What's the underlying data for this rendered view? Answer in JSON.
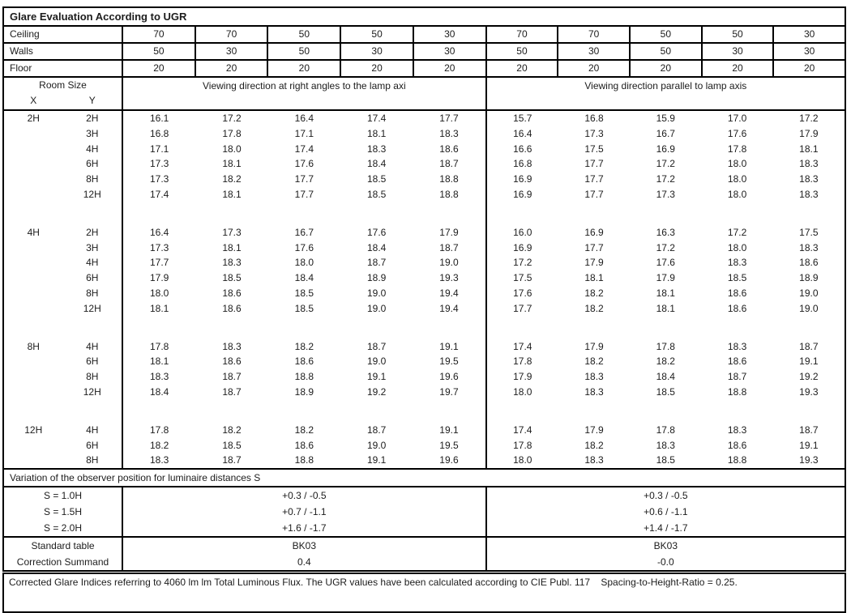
{
  "title": "Glare Evaluation According to UGR",
  "colors": {
    "border": "#000000",
    "text": "#1c1c1c",
    "background": "#ffffff"
  },
  "surface_rows": [
    {
      "label": "Ceiling",
      "values": [
        "70",
        "70",
        "50",
        "50",
        "30",
        "70",
        "70",
        "50",
        "50",
        "30"
      ]
    },
    {
      "label": "Walls",
      "values": [
        "50",
        "30",
        "50",
        "30",
        "30",
        "50",
        "30",
        "50",
        "30",
        "30"
      ]
    },
    {
      "label": "Floor",
      "values": [
        "20",
        "20",
        "20",
        "20",
        "20",
        "20",
        "20",
        "20",
        "20",
        "20"
      ]
    }
  ],
  "header": {
    "room_size": "Room Size",
    "x": "X",
    "y": "Y",
    "left": "Viewing direction at right angles to the lamp axi",
    "right": "Viewing direction parallel to lamp axis"
  },
  "chart_data": {
    "type": "table",
    "title": "Glare Evaluation According to UGR",
    "sections": [
      {
        "x": "2H",
        "rows": [
          {
            "y": "2H",
            "values": [
              "16.1",
              "17.2",
              "16.4",
              "17.4",
              "17.7",
              "15.7",
              "16.8",
              "15.9",
              "17.0",
              "17.2"
            ]
          },
          {
            "y": "3H",
            "values": [
              "16.8",
              "17.8",
              "17.1",
              "18.1",
              "18.3",
              "16.4",
              "17.3",
              "16.7",
              "17.6",
              "17.9"
            ]
          },
          {
            "y": "4H",
            "values": [
              "17.1",
              "18.0",
              "17.4",
              "18.3",
              "18.6",
              "16.6",
              "17.5",
              "16.9",
              "17.8",
              "18.1"
            ]
          },
          {
            "y": "6H",
            "values": [
              "17.3",
              "18.1",
              "17.6",
              "18.4",
              "18.7",
              "16.8",
              "17.7",
              "17.2",
              "18.0",
              "18.3"
            ]
          },
          {
            "y": "8H",
            "values": [
              "17.3",
              "18.2",
              "17.7",
              "18.5",
              "18.8",
              "16.9",
              "17.7",
              "17.2",
              "18.0",
              "18.3"
            ]
          },
          {
            "y": "12H",
            "values": [
              "17.4",
              "18.1",
              "17.7",
              "18.5",
              "18.8",
              "16.9",
              "17.7",
              "17.3",
              "18.0",
              "18.3"
            ]
          }
        ]
      },
      {
        "x": "4H",
        "rows": [
          {
            "y": "2H",
            "values": [
              "16.4",
              "17.3",
              "16.7",
              "17.6",
              "17.9",
              "16.0",
              "16.9",
              "16.3",
              "17.2",
              "17.5"
            ]
          },
          {
            "y": "3H",
            "values": [
              "17.3",
              "18.1",
              "17.6",
              "18.4",
              "18.7",
              "16.9",
              "17.7",
              "17.2",
              "18.0",
              "18.3"
            ]
          },
          {
            "y": "4H",
            "values": [
              "17.7",
              "18.3",
              "18.0",
              "18.7",
              "19.0",
              "17.2",
              "17.9",
              "17.6",
              "18.3",
              "18.6"
            ]
          },
          {
            "y": "6H",
            "values": [
              "17.9",
              "18.5",
              "18.4",
              "18.9",
              "19.3",
              "17.5",
              "18.1",
              "17.9",
              "18.5",
              "18.9"
            ]
          },
          {
            "y": "8H",
            "values": [
              "18.0",
              "18.6",
              "18.5",
              "19.0",
              "19.4",
              "17.6",
              "18.2",
              "18.1",
              "18.6",
              "19.0"
            ]
          },
          {
            "y": "12H",
            "values": [
              "18.1",
              "18.6",
              "18.5",
              "19.0",
              "19.4",
              "17.7",
              "18.2",
              "18.1",
              "18.6",
              "19.0"
            ]
          }
        ]
      },
      {
        "x": "8H",
        "rows": [
          {
            "y": "4H",
            "values": [
              "17.8",
              "18.3",
              "18.2",
              "18.7",
              "19.1",
              "17.4",
              "17.9",
              "17.8",
              "18.3",
              "18.7"
            ]
          },
          {
            "y": "6H",
            "values": [
              "18.1",
              "18.6",
              "18.6",
              "19.0",
              "19.5",
              "17.8",
              "18.2",
              "18.2",
              "18.6",
              "19.1"
            ]
          },
          {
            "y": "8H",
            "values": [
              "18.3",
              "18.7",
              "18.8",
              "19.1",
              "19.6",
              "17.9",
              "18.3",
              "18.4",
              "18.7",
              "19.2"
            ]
          },
          {
            "y": "12H",
            "values": [
              "18.4",
              "18.7",
              "18.9",
              "19.2",
              "19.7",
              "18.0",
              "18.3",
              "18.5",
              "18.8",
              "19.3"
            ]
          }
        ]
      },
      {
        "x": "12H",
        "rows": [
          {
            "y": "4H",
            "values": [
              "17.8",
              "18.2",
              "18.2",
              "18.7",
              "19.1",
              "17.4",
              "17.9",
              "17.8",
              "18.3",
              "18.7"
            ]
          },
          {
            "y": "6H",
            "values": [
              "18.2",
              "18.5",
              "18.6",
              "19.0",
              "19.5",
              "17.8",
              "18.2",
              "18.3",
              "18.6",
              "19.1"
            ]
          },
          {
            "y": "8H",
            "values": [
              "18.3",
              "18.7",
              "18.8",
              "19.1",
              "19.6",
              "18.0",
              "18.3",
              "18.5",
              "18.8",
              "19.3"
            ]
          }
        ]
      }
    ]
  },
  "variation": {
    "title": "Variation of the observer position for luminaire distances S",
    "rows": [
      {
        "label": "S = 1.0H",
        "left": "+0.3 / -0.5",
        "right": "+0.3 / -0.5"
      },
      {
        "label": "S = 1.5H",
        "left": "+0.7 / -1.1",
        "right": "+0.6 / -1.1"
      },
      {
        "label": "S = 2.0H",
        "left": "+1.6 / -1.7",
        "right": "+1.4 / -1.7"
      }
    ]
  },
  "summary": {
    "rows": [
      {
        "label": "Standard table",
        "left": "BK03",
        "right": "BK03"
      },
      {
        "label": "Correction Summand",
        "left": "0.4",
        "right": "-0.0"
      }
    ]
  },
  "footer": "Corrected Glare Indices referring to 4060 lm lm Total Luminous Flux. The UGR values have been calculated according to CIE Publ. 117    Spacing-to-Height-Ratio = 0.25."
}
